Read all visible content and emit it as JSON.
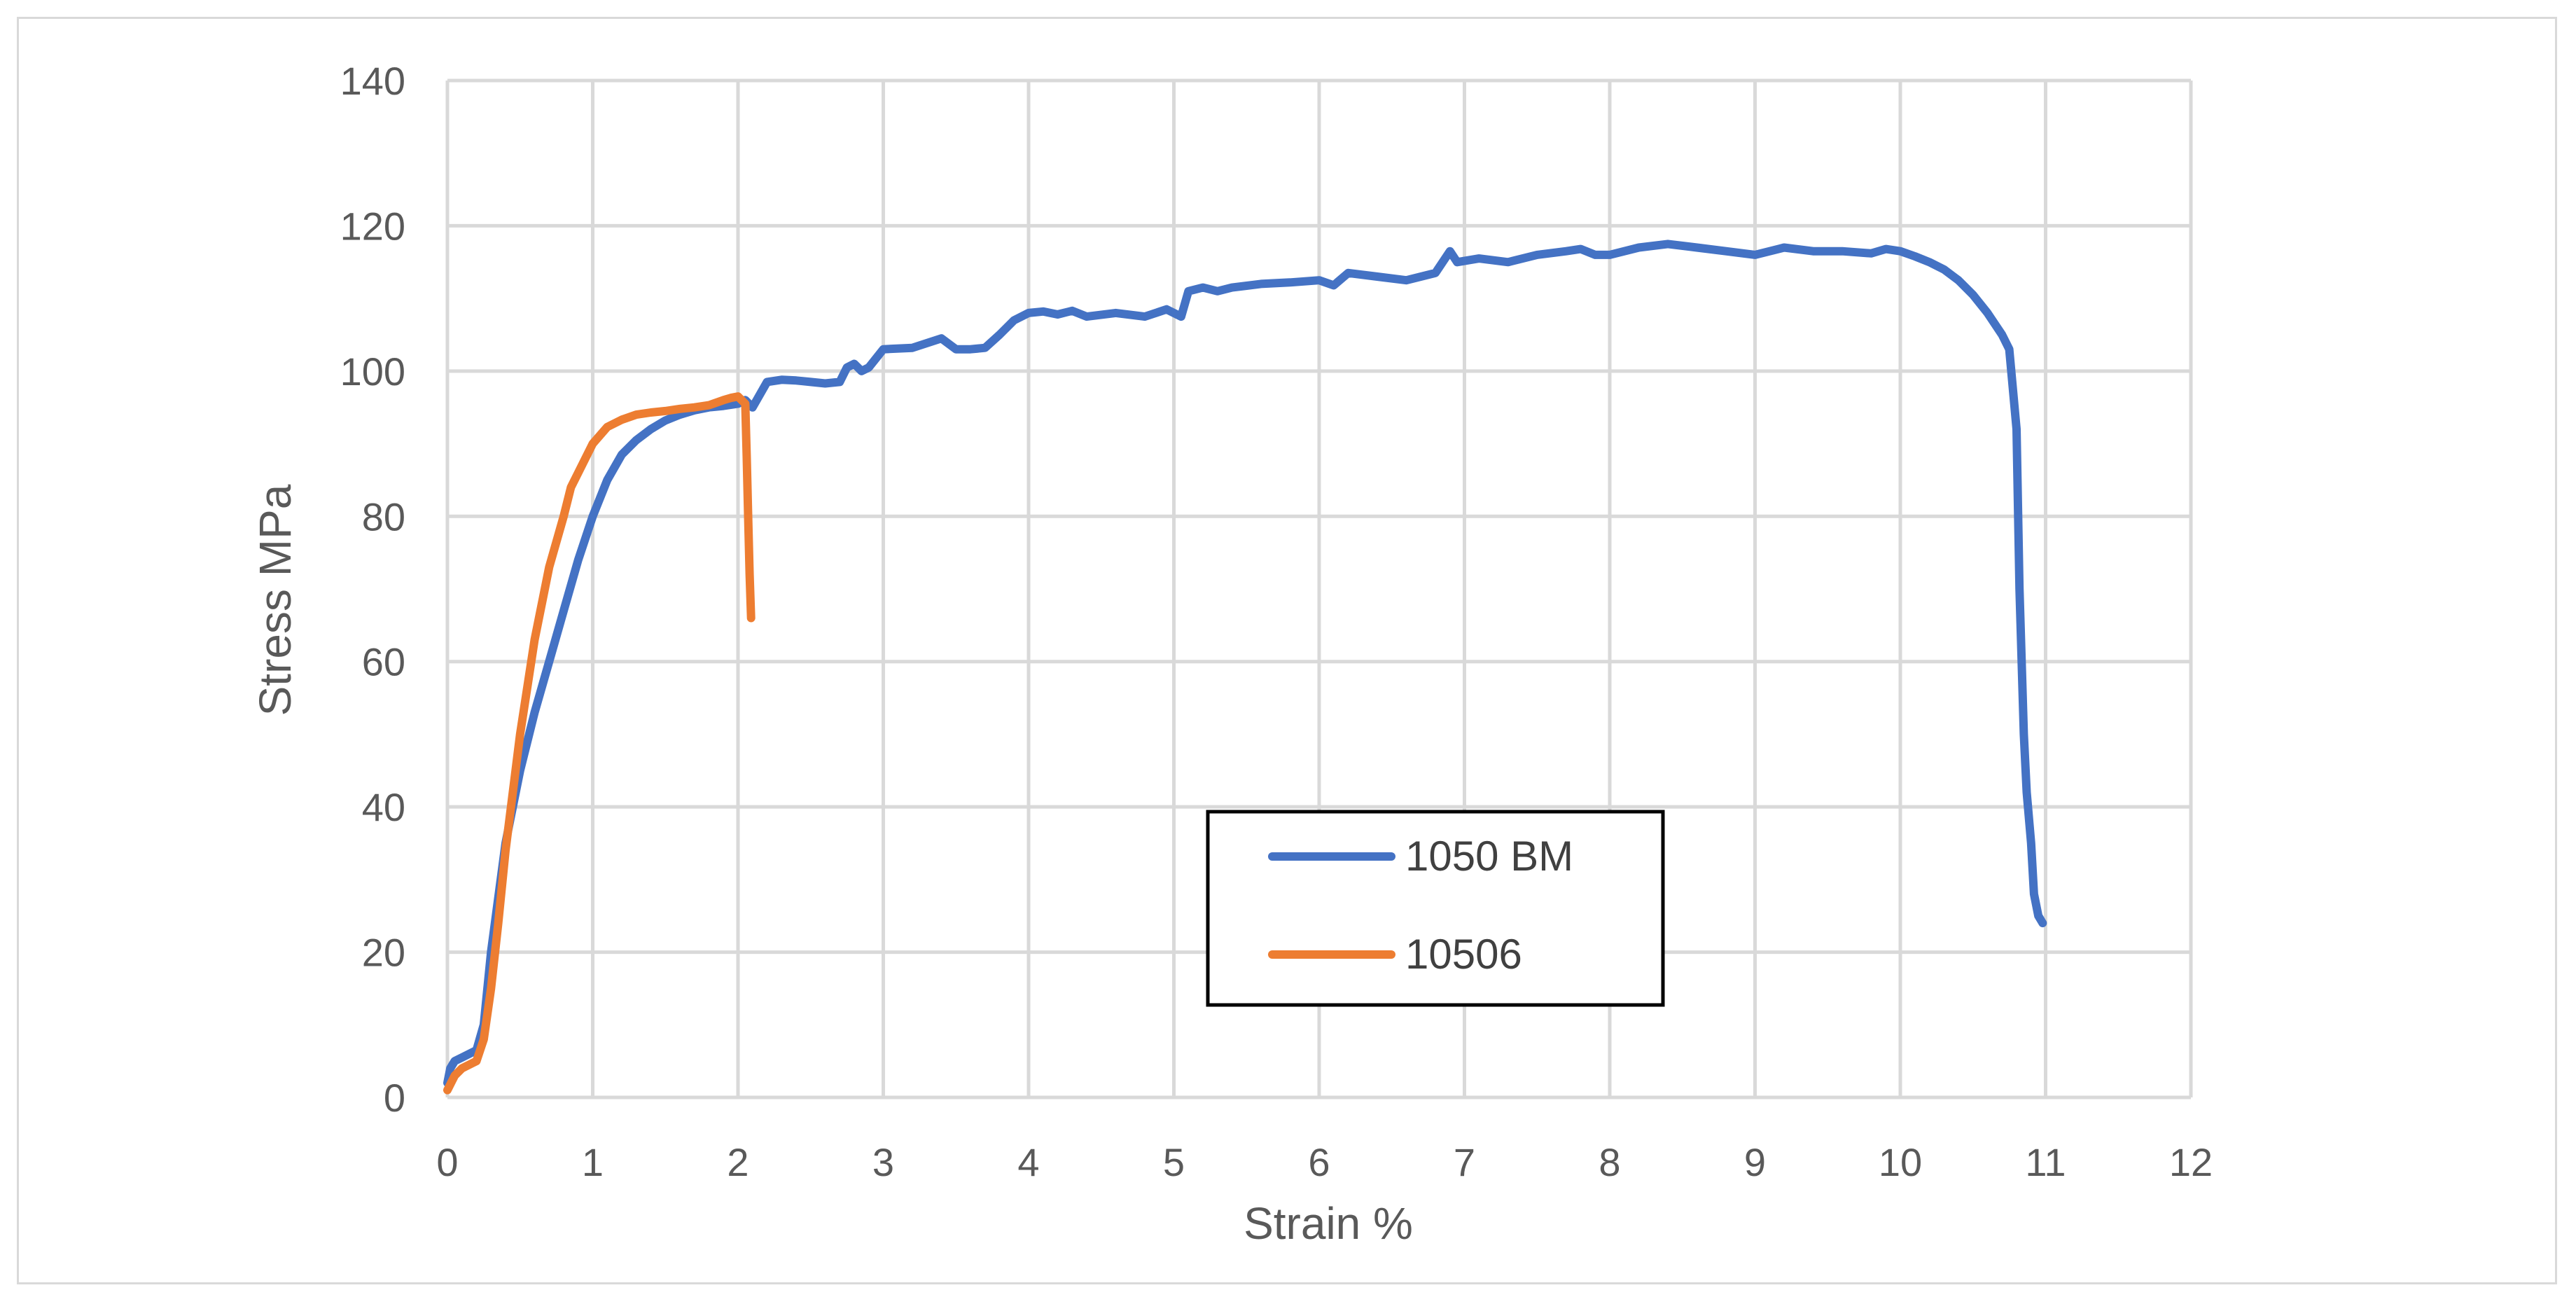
{
  "chart_data": {
    "type": "line",
    "title": "",
    "xlabel": "Strain %",
    "ylabel": "Stress MPa",
    "xlim": [
      0,
      12
    ],
    "ylim": [
      0,
      140
    ],
    "xticks": [
      0,
      1,
      2,
      3,
      4,
      5,
      6,
      7,
      8,
      9,
      10,
      11,
      12
    ],
    "yticks": [
      0,
      20,
      40,
      60,
      80,
      100,
      120,
      140
    ],
    "grid": true,
    "legend_position": "center-bottom",
    "series": [
      {
        "name": "1050 BM",
        "color": "#4472c4",
        "x": [
          0,
          0.02,
          0.05,
          0.1,
          0.2,
          0.25,
          0.3,
          0.4,
          0.5,
          0.6,
          0.7,
          0.8,
          0.9,
          1.0,
          1.1,
          1.2,
          1.3,
          1.4,
          1.5,
          1.6,
          1.7,
          1.8,
          1.9,
          2.0,
          2.05,
          2.1,
          2.2,
          2.3,
          2.4,
          2.5,
          2.6,
          2.7,
          2.75,
          2.8,
          2.85,
          2.9,
          3.0,
          3.2,
          3.4,
          3.5,
          3.6,
          3.7,
          3.8,
          3.9,
          4.0,
          4.1,
          4.2,
          4.3,
          4.4,
          4.6,
          4.8,
          4.95,
          5.05,
          5.1,
          5.2,
          5.3,
          5.4,
          5.6,
          5.8,
          6.0,
          6.1,
          6.2,
          6.4,
          6.6,
          6.8,
          6.9,
          6.95,
          7.1,
          7.3,
          7.5,
          7.7,
          7.8,
          7.9,
          8.0,
          8.2,
          8.4,
          8.6,
          8.8,
          9.0,
          9.2,
          9.4,
          9.6,
          9.8,
          9.9,
          10.0,
          10.1,
          10.2,
          10.3,
          10.4,
          10.5,
          10.6,
          10.7,
          10.75,
          10.8,
          10.82,
          10.85,
          10.87,
          10.9,
          10.92,
          10.95,
          10.98
        ],
        "y": [
          2,
          4,
          5,
          5.5,
          6.5,
          10,
          20,
          35,
          45,
          53,
          60,
          67,
          74,
          80,
          85,
          88.5,
          90.5,
          92,
          93.2,
          94,
          94.6,
          95,
          95.2,
          95.5,
          96,
          95,
          98.5,
          98.8,
          98.7,
          98.5,
          98.3,
          98.5,
          100.5,
          101,
          100,
          100.5,
          103,
          103.2,
          104.5,
          103,
          103,
          103.2,
          105,
          107,
          108,
          108.2,
          107.8,
          108.3,
          107.5,
          108,
          107.5,
          108.5,
          107.5,
          111,
          111.5,
          111,
          111.5,
          112,
          112.2,
          112.5,
          111.8,
          113.5,
          113,
          112.5,
          113.5,
          116.5,
          115,
          115.5,
          115,
          116,
          116.5,
          116.8,
          116,
          116,
          117,
          117.5,
          117,
          116.5,
          116,
          117,
          116.5,
          116.5,
          116.2,
          116.8,
          116.5,
          115.8,
          115,
          114,
          112.5,
          110.5,
          108,
          105,
          103,
          92,
          70,
          50,
          42,
          35,
          28,
          25,
          24
        ]
      },
      {
        "name": "10506",
        "color": "#ed7d31",
        "x": [
          0,
          0.05,
          0.1,
          0.2,
          0.25,
          0.3,
          0.35,
          0.4,
          0.5,
          0.6,
          0.7,
          0.8,
          0.85,
          0.9,
          1.0,
          1.1,
          1.2,
          1.3,
          1.4,
          1.5,
          1.6,
          1.7,
          1.8,
          1.9,
          1.95,
          2.0,
          2.05,
          2.06,
          2.07,
          2.08,
          2.09
        ],
        "y": [
          1,
          3,
          4,
          5,
          8,
          15,
          24,
          34,
          50,
          63,
          73,
          80,
          84,
          86,
          90,
          92.3,
          93.3,
          94,
          94.3,
          94.5,
          94.8,
          95,
          95.3,
          96,
          96.3,
          96.5,
          95.5,
          88,
          80,
          72,
          66
        ]
      }
    ]
  }
}
